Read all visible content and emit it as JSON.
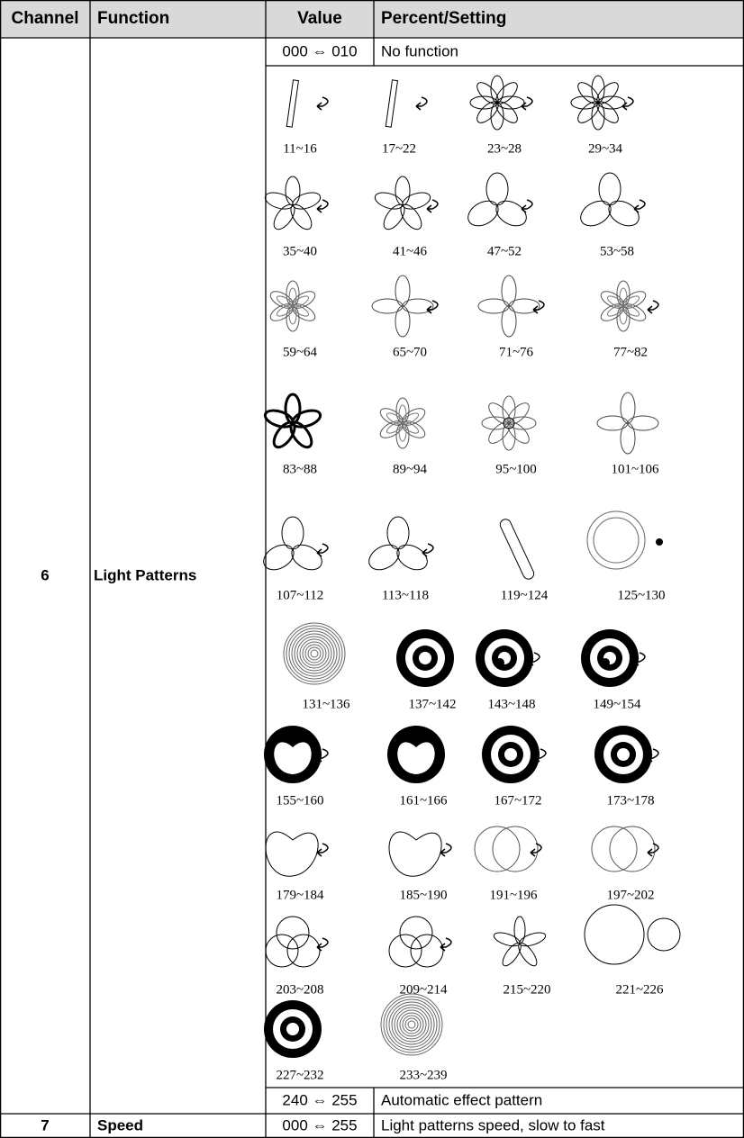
{
  "table": {
    "header": [
      "Channel",
      "Function",
      "Value",
      "Percent/Setting"
    ],
    "rows": [
      {
        "channel": "6",
        "function": "Light Patterns",
        "entries": [
          {
            "value": "000 ⇔ 010",
            "setting": "No function"
          },
          {
            "value": "240 ⇔ 255",
            "setting": "Automatic effect pattern"
          }
        ],
        "patterns": [
          "11~16",
          "17~22",
          "23~28",
          "29~34",
          "35~40",
          "41~46",
          "47~52",
          "53~58",
          "59~64",
          "65~70",
          "71~76",
          "77~82",
          "83~88",
          "89~94",
          "95~100",
          "101~106",
          "107~112",
          "113~118",
          "119~124",
          "125~130",
          "131~136",
          "137~142",
          "143~148",
          "149~154",
          "155~160",
          "161~166",
          "167~172",
          "173~178",
          "179~184",
          "185~190",
          "191~196",
          "197~202",
          "203~208",
          "209~214",
          "215~220",
          "221~226",
          "227~232",
          "233~239"
        ]
      },
      {
        "channel": "7",
        "function": "Speed",
        "entries": [
          {
            "value": "000 ⇔ 255",
            "setting": "Light patterns speed, slow to fast"
          }
        ]
      }
    ]
  }
}
